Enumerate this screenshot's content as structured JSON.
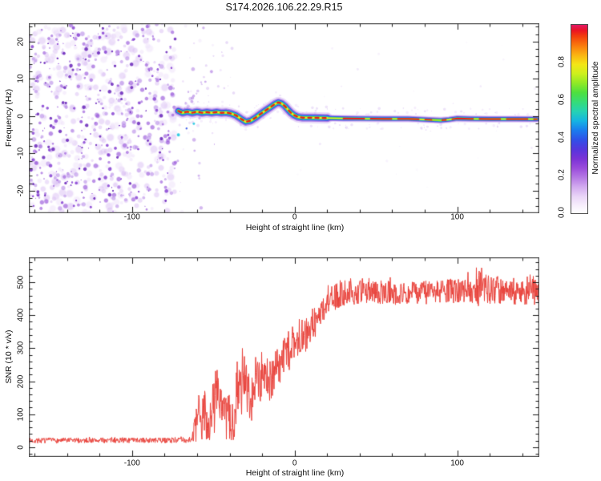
{
  "title": "S174.2026.106.22.29.R15",
  "colors": {
    "frame": "#4d4d4d",
    "tick": "#1a1a1a",
    "text": "#111111",
    "snr_trace": "#e8413a",
    "noise_palette": [
      "#efe3fa",
      "#dcc3f4",
      "#c09aea",
      "#9f63dc",
      "#8038d0",
      "#5f17b5"
    ],
    "cyan_dot": "#22c8e0",
    "blue_dot": "#3050e8",
    "colorbar_stops": [
      [
        0.0,
        "#ffffff"
      ],
      [
        0.04,
        "#f7effc"
      ],
      [
        0.09,
        "#e9d4f7"
      ],
      [
        0.14,
        "#d2aaef"
      ],
      [
        0.19,
        "#b578e4"
      ],
      [
        0.24,
        "#9a4bdb"
      ],
      [
        0.29,
        "#7a33d6"
      ],
      [
        0.34,
        "#5536dd"
      ],
      [
        0.39,
        "#3050e8"
      ],
      [
        0.44,
        "#1a7cee"
      ],
      [
        0.49,
        "#15b4e2"
      ],
      [
        0.54,
        "#25d2b4"
      ],
      [
        0.59,
        "#35dc78"
      ],
      [
        0.64,
        "#4de03e"
      ],
      [
        0.69,
        "#8fe926"
      ],
      [
        0.74,
        "#cdf01c"
      ],
      [
        0.79,
        "#f4e616"
      ],
      [
        0.84,
        "#fbb312"
      ],
      [
        0.89,
        "#f97a0e"
      ],
      [
        0.94,
        "#f23d0d"
      ],
      [
        0.97,
        "#ea1423"
      ],
      [
        1.0,
        "#e01a66"
      ]
    ],
    "signal_layers": [
      {
        "color": "#c7a3ee",
        "alpha": 0.4,
        "width": 14.0,
        "width2": 9.0
      },
      {
        "color": "#9257db",
        "alpha": 0.65,
        "width": 10.0,
        "width2": 6.8
      },
      {
        "color": "#3141e2",
        "alpha": 0.95,
        "width": 7.0,
        "width2": 4.8
      },
      {
        "color": "#18b8e8",
        "alpha": 1.0,
        "width": 5.2,
        "width2": 3.4
      },
      {
        "color": "#38d84c",
        "alpha": 1.0,
        "width": 3.6,
        "width2": 2.4
      },
      {
        "color": "#f2ea1c",
        "alpha": 1.0,
        "width": 2.3,
        "width2": 1.6
      }
    ],
    "signal_core": {
      "color": "#ee1f14",
      "width": 2.3,
      "width2": 1.9,
      "dash_turbulent": [
        4,
        5
      ],
      "dash_flat": [
        26,
        8
      ]
    }
  },
  "chart_data": [
    {
      "type": "heatmap",
      "title": "S174.2026.106.22.29.R15",
      "xlabel": "Height of straight line (km)",
      "ylabel": "Frequency (Hz)",
      "xlim": [
        -163,
        150
      ],
      "ylim": [
        -25.8,
        24.7
      ],
      "x_ticks": [
        -100,
        0,
        100
      ],
      "x_tick_labels": [
        "-100",
        "0",
        "100"
      ],
      "x_minor_step": 20,
      "y_ticks": [
        -20,
        -10,
        0,
        10,
        20
      ],
      "y_tick_labels": [
        "-20",
        "-10",
        "0",
        "10",
        "20"
      ],
      "y_minor_step": 2,
      "colorbar": {
        "label": "Normalized spectral amplitude",
        "ticks": [
          0.0,
          0.2,
          0.4,
          0.6,
          0.8
        ],
        "tick_labels": [
          "0.0",
          "0.2",
          "0.4",
          "0.6",
          "0.8"
        ],
        "range": [
          0,
          1
        ]
      },
      "noise_field": {
        "x_range": [
          -163,
          -73.3
        ],
        "y_range": [
          -25.8,
          24.7
        ],
        "description": "dense random purple speckle noise (no coherent signal) left of -73 km"
      },
      "signal_track": {
        "description": "narrow high-amplitude carrier line near 0 Hz, turbulent wiggles from -71 to +15 km then flat slightly below 0 Hz",
        "points_km_hz": [
          [
            -71.5,
            1.4
          ],
          [
            -69,
            0.9
          ],
          [
            -66,
            1.2
          ],
          [
            -63,
            0.9
          ],
          [
            -60,
            1.2
          ],
          [
            -57,
            0.9
          ],
          [
            -54,
            1.1
          ],
          [
            -51,
            0.9
          ],
          [
            -48,
            1.1
          ],
          [
            -45,
            0.9
          ],
          [
            -42,
            1.0
          ],
          [
            -39,
            0.7
          ],
          [
            -36,
            0.2
          ],
          [
            -33,
            -0.7
          ],
          [
            -30,
            -1.5
          ],
          [
            -27,
            -1.2
          ],
          [
            -24,
            -0.4
          ],
          [
            -21,
            0.6
          ],
          [
            -18,
            1.5
          ],
          [
            -15,
            2.4
          ],
          [
            -12,
            3.3
          ],
          [
            -10,
            3.7
          ],
          [
            -8,
            3.4
          ],
          [
            -6,
            2.7
          ],
          [
            -4,
            1.7
          ],
          [
            -2,
            0.8
          ],
          [
            0,
            0.2
          ],
          [
            2,
            -0.2
          ],
          [
            5,
            -0.4
          ],
          [
            10,
            -0.4
          ],
          [
            20,
            -0.5
          ],
          [
            30,
            -0.6
          ],
          [
            40,
            -0.65
          ],
          [
            55,
            -0.7
          ],
          [
            70,
            -0.7
          ],
          [
            85,
            -1.0
          ],
          [
            90,
            -1.1
          ],
          [
            95,
            -0.9
          ],
          [
            100,
            -0.6
          ],
          [
            108,
            -0.7
          ],
          [
            120,
            -0.75
          ],
          [
            135,
            -0.75
          ],
          [
            149,
            -0.8
          ]
        ]
      }
    },
    {
      "type": "line",
      "xlabel": "Height of straight line (km)",
      "ylabel": "SNR (10 * v/v)",
      "xlim": [
        -163,
        150
      ],
      "ylim": [
        -27,
        573
      ],
      "x_ticks": [
        -100,
        0,
        100
      ],
      "x_tick_labels": [
        "-100",
        "0",
        "100"
      ],
      "x_minor_step": 20,
      "y_ticks": [
        0,
        100,
        200,
        300,
        400,
        500
      ],
      "y_tick_labels": [
        "0",
        "100",
        "200",
        "300",
        "400",
        "500"
      ],
      "y_minor_step": 20,
      "series": [
        {
          "name": "SNR",
          "color": "#e8413a",
          "description": "noise floor ~20 until -63 km, turbulent spiky rise between -62 and +25 km, plateau ~470 with spike to ~555 near +116 km",
          "envelope_km_mean_amp": [
            [
              -163,
              20,
              8
            ],
            [
              -120,
              21,
              8
            ],
            [
              -80,
              21,
              8
            ],
            [
              -66,
              22,
              9
            ],
            [
              -63,
              28,
              14
            ],
            [
              -61,
              55,
              45
            ],
            [
              -59,
              95,
              70
            ],
            [
              -57,
              75,
              60
            ],
            [
              -55,
              115,
              85
            ],
            [
              -53,
              60,
              50
            ],
            [
              -51,
              95,
              85
            ],
            [
              -49,
              150,
              110
            ],
            [
              -47,
              185,
              85
            ],
            [
              -45,
              120,
              95
            ],
            [
              -43,
              65,
              60
            ],
            [
              -41,
              110,
              95
            ],
            [
              -39,
              45,
              40
            ],
            [
              -37,
              130,
              110
            ],
            [
              -35,
              205,
              85
            ],
            [
              -33,
              150,
              110
            ],
            [
              -31,
              215,
              75
            ],
            [
              -29,
              165,
              85
            ],
            [
              -27,
              125,
              65
            ],
            [
              -25,
              205,
              75
            ],
            [
              -23,
              235,
              65
            ],
            [
              -21,
              195,
              75
            ],
            [
              -19,
              235,
              55
            ],
            [
              -17,
              215,
              65
            ],
            [
              -15,
              175,
              65
            ],
            [
              -13,
              235,
              65
            ],
            [
              -11,
              255,
              55
            ],
            [
              -9,
              235,
              55
            ],
            [
              -7,
              272,
              52
            ],
            [
              -5,
              292,
              52
            ],
            [
              -3,
              282,
              52
            ],
            [
              -1,
              305,
              52
            ],
            [
              1,
              318,
              48
            ],
            [
              3,
              328,
              48
            ],
            [
              5,
              342,
              48
            ],
            [
              7,
              335,
              48
            ],
            [
              9,
              362,
              48
            ],
            [
              11,
              382,
              48
            ],
            [
              13,
              372,
              48
            ],
            [
              15,
              402,
              45
            ],
            [
              17,
              412,
              44
            ],
            [
              19,
              432,
              42
            ],
            [
              21,
              442,
              42
            ],
            [
              24,
              452,
              40
            ],
            [
              28,
              462,
              38
            ],
            [
              35,
              468,
              36
            ],
            [
              50,
              470,
              36
            ],
            [
              70,
              466,
              36
            ],
            [
              90,
              472,
              36
            ],
            [
              105,
              476,
              38
            ],
            [
              113,
              482,
              55
            ],
            [
              116,
              500,
              60
            ],
            [
              118,
              472,
              40
            ],
            [
              130,
              470,
              38
            ],
            [
              148,
              472,
              42
            ]
          ]
        }
      ]
    }
  ]
}
